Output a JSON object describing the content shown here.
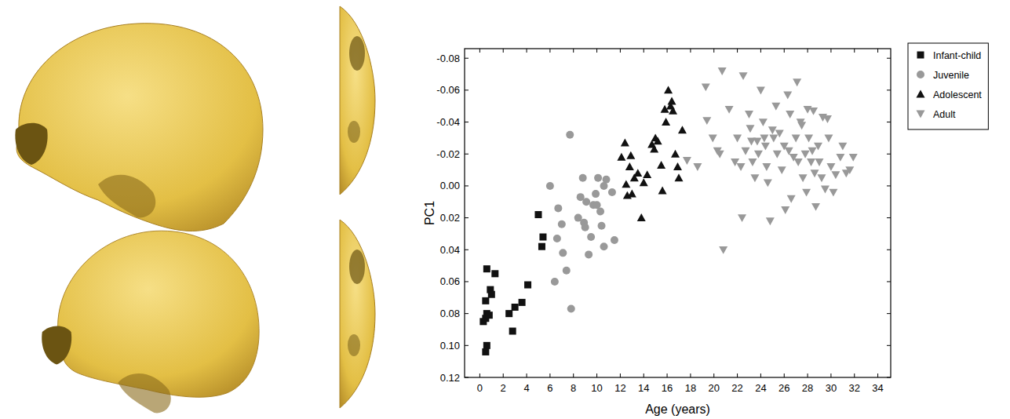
{
  "chart_data": {
    "type": "scatter",
    "x_label": "Age (years)",
    "y_label": "PC1",
    "xlim": [
      -1.3,
      35.1
    ],
    "xticks": [
      0,
      2,
      4,
      6,
      8,
      10,
      12,
      14,
      16,
      18,
      20,
      22,
      24,
      26,
      28,
      30,
      32,
      34
    ],
    "ylim": [
      0.12,
      -0.086
    ],
    "yticks": [
      -0.08,
      -0.06,
      -0.04,
      -0.02,
      {
        "value": 0,
        "label": "0.00"
      },
      0.02,
      0.04,
      0.06,
      0.08,
      {
        "value": 0.1,
        "label": "0.10"
      },
      0.12
    ],
    "grid": false,
    "legend": "outside-right",
    "series": [
      {
        "name": "Infant-child",
        "color": "#111111",
        "marker": "square",
        "x": [
          0.3,
          0.5,
          0.6,
          0.8,
          0.5,
          0.6,
          0.9,
          1.0,
          1.3,
          0.6,
          0.5,
          2.5,
          2.8,
          3.0,
          3.6,
          4.1,
          5.0,
          5.4,
          5.3
        ],
        "values": [
          0.085,
          0.083,
          0.08,
          0.081,
          0.072,
          0.052,
          0.065,
          0.068,
          0.055,
          0.1,
          0.104,
          0.08,
          0.091,
          0.076,
          0.073,
          0.062,
          0.018,
          0.032,
          0.038
        ]
      },
      {
        "name": "Juvenile",
        "color": "#999999",
        "marker": "circle",
        "x": [
          7.7,
          6.0,
          6.7,
          6.6,
          6.4,
          7.0,
          7.1,
          7.4,
          7.8,
          8.4,
          8.6,
          8.8,
          8.9,
          9.0,
          9.1,
          9.3,
          9.5,
          9.7,
          9.9,
          10.0,
          10.1,
          10.3,
          10.4,
          10.6,
          10.8,
          11.3,
          11.5,
          10.6
        ],
        "values": [
          -0.032,
          0.0,
          0.014,
          0.033,
          0.06,
          0.024,
          0.042,
          0.053,
          0.077,
          0.02,
          0.007,
          -0.005,
          0.023,
          0.026,
          0.01,
          0.043,
          0.032,
          0.012,
          0.005,
          0.012,
          -0.005,
          0.016,
          0.025,
          0.038,
          -0.004,
          0.004,
          0.034,
          0.0
        ]
      },
      {
        "name": "Adolescent",
        "color": "#111111",
        "marker": "triangle",
        "x": [
          12.1,
          12.4,
          12.5,
          12.6,
          12.8,
          12.9,
          13.0,
          13.2,
          13.5,
          13.8,
          14.0,
          14.3,
          14.7,
          14.9,
          15.0,
          15.2,
          15.5,
          15.6,
          15.8,
          15.9,
          16.1,
          16.3,
          16.4,
          16.5,
          16.7,
          16.9,
          17.0,
          17.3
        ],
        "values": [
          -0.018,
          -0.027,
          -0.001,
          0.006,
          -0.012,
          -0.019,
          0.005,
          -0.005,
          -0.008,
          0.02,
          -0.002,
          -0.007,
          -0.026,
          -0.023,
          -0.03,
          -0.028,
          -0.013,
          0.003,
          -0.048,
          -0.04,
          -0.06,
          -0.05,
          -0.053,
          -0.047,
          -0.02,
          -0.012,
          -0.005,
          -0.035
        ]
      },
      {
        "name": "Adult",
        "color": "#999999",
        "marker": "triangle-down",
        "x": [
          17.7,
          18.6,
          19.3,
          19.4,
          19.9,
          20.3,
          20.5,
          20.7,
          20.8,
          21.3,
          21.8,
          22.0,
          22.3,
          22.4,
          22.5,
          22.7,
          23.0,
          23.1,
          23.2,
          23.3,
          23.5,
          23.7,
          23.8,
          24.0,
          24.2,
          24.3,
          24.4,
          24.5,
          24.6,
          24.8,
          25.0,
          25.1,
          25.3,
          25.4,
          25.6,
          25.8,
          26.0,
          26.1,
          26.3,
          26.4,
          26.5,
          26.6,
          26.8,
          27.0,
          27.1,
          27.2,
          27.4,
          27.5,
          27.6,
          27.8,
          27.9,
          28.0,
          28.1,
          28.3,
          28.4,
          28.5,
          28.6,
          28.7,
          28.9,
          29.0,
          29.2,
          29.3,
          29.5,
          29.7,
          29.8,
          30.0,
          30.2,
          30.4,
          30.8,
          31.0,
          31.3,
          31.6,
          31.9
        ],
        "values": [
          -0.016,
          -0.012,
          -0.062,
          -0.041,
          -0.03,
          -0.022,
          -0.02,
          -0.072,
          0.04,
          -0.048,
          -0.015,
          -0.03,
          -0.012,
          0.02,
          -0.069,
          -0.022,
          -0.045,
          -0.036,
          -0.028,
          -0.015,
          -0.005,
          -0.028,
          -0.02,
          -0.06,
          -0.04,
          -0.03,
          -0.025,
          -0.012,
          -0.002,
          0.022,
          -0.035,
          -0.03,
          -0.05,
          -0.02,
          -0.033,
          -0.01,
          -0.025,
          0.015,
          -0.057,
          -0.022,
          -0.045,
          0.008,
          -0.018,
          -0.03,
          -0.065,
          -0.015,
          -0.04,
          -0.038,
          -0.005,
          -0.02,
          0.004,
          -0.048,
          -0.03,
          -0.015,
          -0.022,
          -0.047,
          -0.008,
          0.013,
          -0.025,
          -0.015,
          -0.005,
          -0.043,
          0.002,
          -0.042,
          -0.03,
          -0.012,
          0.004,
          -0.007,
          -0.018,
          -0.025,
          -0.008,
          -0.01,
          -0.018
        ]
      }
    ]
  }
}
